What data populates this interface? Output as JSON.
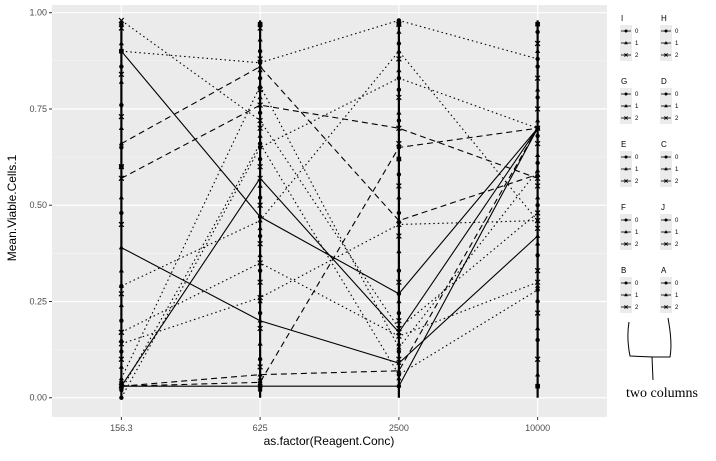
{
  "chart_data": {
    "type": "line",
    "xlabel": "as.factor(Reagent.Conc)",
    "ylabel": "Mean.Viable.Cells.1",
    "categories": [
      "156.3",
      "625",
      "2500",
      "10000"
    ],
    "ylim": [
      -0.05,
      1.02
    ],
    "y_ticks": [
      0.0,
      0.25,
      0.5,
      0.75,
      1.0
    ],
    "y_tick_labels": [
      "0.00",
      "0.25",
      "0.50",
      "0.75",
      "1.00"
    ],
    "grid": true,
    "legend_position": "right",
    "legend_levels": [
      "0",
      "1",
      "2"
    ],
    "legend_groups": [
      {
        "title": "I"
      },
      {
        "title": "H"
      },
      {
        "title": "G"
      },
      {
        "title": "D"
      },
      {
        "title": "E"
      },
      {
        "title": "C"
      },
      {
        "title": "F"
      },
      {
        "title": "J"
      },
      {
        "title": "B"
      },
      {
        "title": "A"
      }
    ],
    "series": [
      {
        "linetype": "solid",
        "values": [
          0.9,
          0.47,
          0.27,
          0.7
        ]
      },
      {
        "linetype": "solid",
        "values": [
          0.39,
          0.2,
          0.09,
          0.42
        ]
      },
      {
        "linetype": "solid",
        "values": [
          0.03,
          0.57,
          0.17,
          0.7
        ]
      },
      {
        "linetype": "solid",
        "values": [
          0.03,
          0.03,
          0.03,
          0.7
        ]
      },
      {
        "linetype": "dashed",
        "values": [
          0.66,
          0.86,
          0.46,
          0.58
        ]
      },
      {
        "linetype": "dashed",
        "values": [
          0.57,
          0.76,
          0.7,
          0.57
        ]
      },
      {
        "linetype": "dashed",
        "values": [
          0.03,
          0.04,
          0.65,
          0.7
        ]
      },
      {
        "linetype": "dashed",
        "values": [
          0.03,
          0.06,
          0.07,
          0.7
        ]
      },
      {
        "linetype": "dotted",
        "values": [
          0.98,
          0.72,
          0.18,
          0.48
        ]
      },
      {
        "linetype": "dotted",
        "values": [
          0.9,
          0.87,
          0.98,
          0.88
        ]
      },
      {
        "linetype": "dotted",
        "values": [
          0.29,
          0.46,
          0.9,
          0.46
        ]
      },
      {
        "linetype": "dotted",
        "values": [
          0.17,
          0.35,
          0.16,
          0.3
        ]
      },
      {
        "linetype": "dotted",
        "values": [
          0.0,
          0.65,
          0.83,
          0.7
        ]
      },
      {
        "linetype": "dotted",
        "values": [
          0.05,
          0.81,
          0.13,
          0.59
        ]
      },
      {
        "linetype": "dotted",
        "values": [
          0.14,
          0.26,
          0.45,
          0.46
        ]
      },
      {
        "linetype": "dotted",
        "values": [
          0.02,
          0.66,
          0.06,
          0.28
        ]
      }
    ],
    "extra_points": [
      {
        "x": "156.3",
        "values": [
          0.04,
          0.08,
          0.1,
          0.12,
          0.15,
          0.17,
          0.2,
          0.24,
          0.27,
          0.29,
          0.33,
          0.45,
          0.48,
          0.52,
          0.6,
          0.65,
          0.7,
          0.73,
          0.76,
          0.82,
          0.84,
          0.86,
          0.92,
          0.96,
          0.97
        ]
      },
      {
        "x": "625",
        "values": [
          0.02,
          0.05,
          0.08,
          0.1,
          0.14,
          0.18,
          0.22,
          0.25,
          0.3,
          0.33,
          0.37,
          0.4,
          0.42,
          0.44,
          0.5,
          0.52,
          0.55,
          0.6,
          0.62,
          0.68,
          0.7,
          0.74,
          0.78,
          0.8,
          0.83,
          0.85,
          0.88,
          0.9,
          0.93,
          0.96,
          0.97
        ]
      },
      {
        "x": "2500",
        "values": [
          0.03,
          0.05,
          0.1,
          0.12,
          0.14,
          0.2,
          0.22,
          0.25,
          0.3,
          0.33,
          0.38,
          0.42,
          0.48,
          0.52,
          0.55,
          0.58,
          0.62,
          0.66,
          0.72,
          0.74,
          0.78,
          0.8,
          0.85,
          0.88,
          0.92,
          0.95,
          0.97
        ]
      },
      {
        "x": "10000",
        "values": [
          0.03,
          0.06,
          0.1,
          0.15,
          0.18,
          0.22,
          0.25,
          0.29,
          0.33,
          0.37,
          0.4,
          0.44,
          0.5,
          0.52,
          0.55,
          0.61,
          0.63,
          0.66,
          0.68,
          0.72,
          0.75,
          0.78,
          0.8,
          0.83,
          0.86,
          0.9,
          0.92,
          0.95,
          0.97
        ]
      }
    ]
  },
  "annotation": {
    "text": "two  columns"
  }
}
